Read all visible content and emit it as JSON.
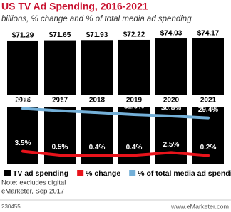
{
  "chart_data": {
    "type": "bar",
    "title": "US TV Ad Spending, 2016-2021",
    "subtitle": "billions, % change and % of total media ad spending",
    "categories": [
      "2016",
      "2017",
      "2018",
      "2019",
      "2020",
      "2021"
    ],
    "series": [
      {
        "name": "TV ad spending",
        "color": "#000000",
        "values": [
          71.29,
          71.65,
          71.93,
          72.22,
          74.03,
          74.17
        ],
        "value_labels": [
          "$71.29",
          "$71.65",
          "$71.93",
          "$72.22",
          "$74.03",
          "$74.17"
        ]
      },
      {
        "name": "% change",
        "color": "#e8131b",
        "axis": "y2",
        "values": [
          3.5,
          0.5,
          0.4,
          0.4,
          2.5,
          0.2
        ],
        "value_labels": [
          "3.5%",
          "0.5%",
          "0.4%",
          "0.4%",
          "2.5%",
          "0.2%"
        ]
      },
      {
        "name": "% of total media ad spending",
        "color": "#74b0d8",
        "axis": "y2",
        "values": [
          36.6,
          34.9,
          33.5,
          31.9,
          30.8,
          29.4
        ],
        "value_labels": [
          "36.6%",
          "34.9%",
          "33.5%",
          "31.9%",
          "30.8%",
          "29.4%"
        ]
      }
    ],
    "ylim": [
      0,
      75
    ],
    "y2lim": [
      -5,
      38
    ],
    "note": "Note: excludes digital",
    "source": "eMarketer, Sep 2017",
    "chart_id": "230455",
    "website": "www.eMarketer.com"
  }
}
